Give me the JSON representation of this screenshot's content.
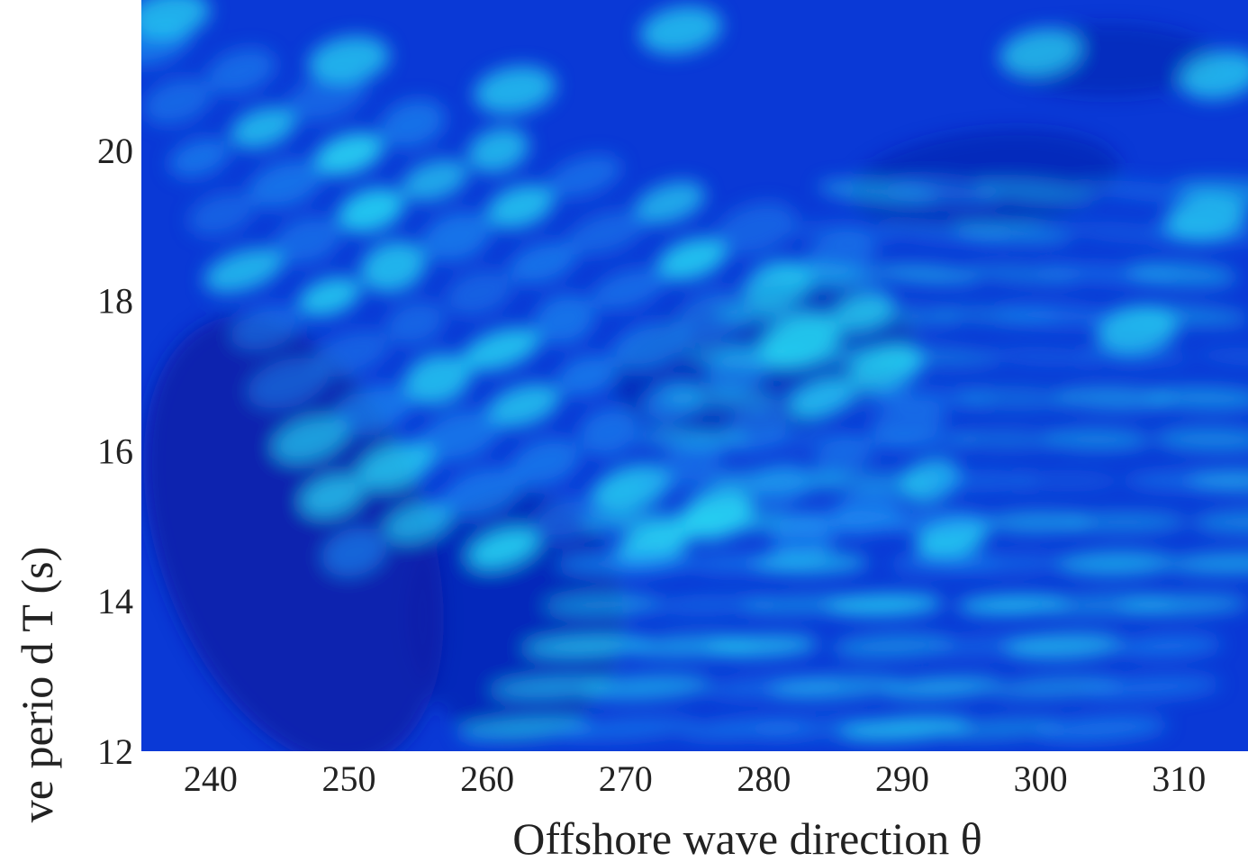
{
  "chart_data": {
    "type": "heatmap",
    "title": "",
    "xlabel": "Offshore wave direction θ",
    "ylabel": "ve perio d T (s)",
    "xlim": [
      235,
      315
    ],
    "ylim": [
      12,
      22
    ],
    "xticks": [
      "240",
      "250",
      "260",
      "270",
      "280",
      "290",
      "300",
      "310"
    ],
    "yticks": [
      "12",
      "14",
      "16",
      "18",
      "20"
    ],
    "colormap": "jet",
    "colors": {
      "low": "#0a1ea8",
      "mid": "#0a45e6",
      "high": "#27d6f2"
    },
    "grid": false,
    "legend": "none"
  }
}
